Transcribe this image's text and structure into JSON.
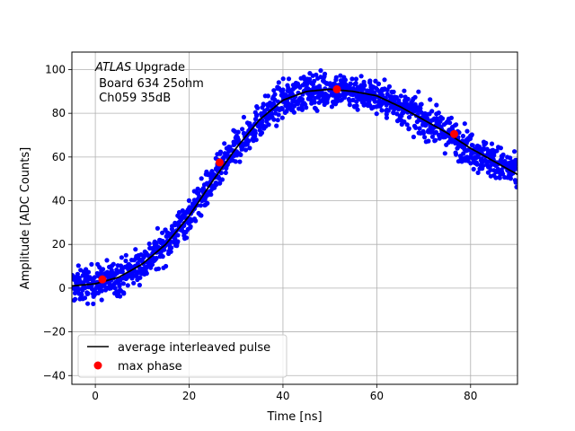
{
  "chart_data": {
    "type": "scatter",
    "title": "",
    "xlabel": "Time [ns]",
    "ylabel": "Amplitude [ADC Counts]",
    "xlim": [
      -5,
      90
    ],
    "ylim": [
      -44,
      108
    ],
    "xticks": [
      0,
      20,
      40,
      60,
      80
    ],
    "yticks": [
      -40,
      -20,
      0,
      20,
      40,
      60,
      80,
      100
    ],
    "grid": true,
    "legend_position": "lower-left",
    "annotation": {
      "atlas": "ATLAS",
      "line1_rest": " Upgrade",
      "line2": " Board 634 25ohm",
      "line3": " Ch059 35dB"
    },
    "series": [
      {
        "name": "average interleaved pulse",
        "kind": "line",
        "color": "#000000",
        "x": [
          -5,
          0,
          5,
          10,
          15,
          20,
          25,
          30,
          35,
          40,
          45,
          50,
          55,
          60,
          65,
          70,
          75,
          80,
          85,
          90
        ],
        "y": [
          1,
          2,
          5,
          11,
          20,
          33,
          49,
          64,
          77,
          86,
          90,
          91,
          90,
          88,
          83,
          77,
          71,
          64,
          58,
          52
        ]
      },
      {
        "name": "",
        "kind": "scatter",
        "color": "#0000ff",
        "description": "interleaved samples scattered around the average pulse",
        "spread": 4
      },
      {
        "name": "max phase",
        "kind": "scatter",
        "color": "#ff0000",
        "x": [
          1.5,
          26.5,
          51.5,
          76.5
        ],
        "y": [
          4,
          57.5,
          91,
          70.5
        ]
      }
    ]
  }
}
